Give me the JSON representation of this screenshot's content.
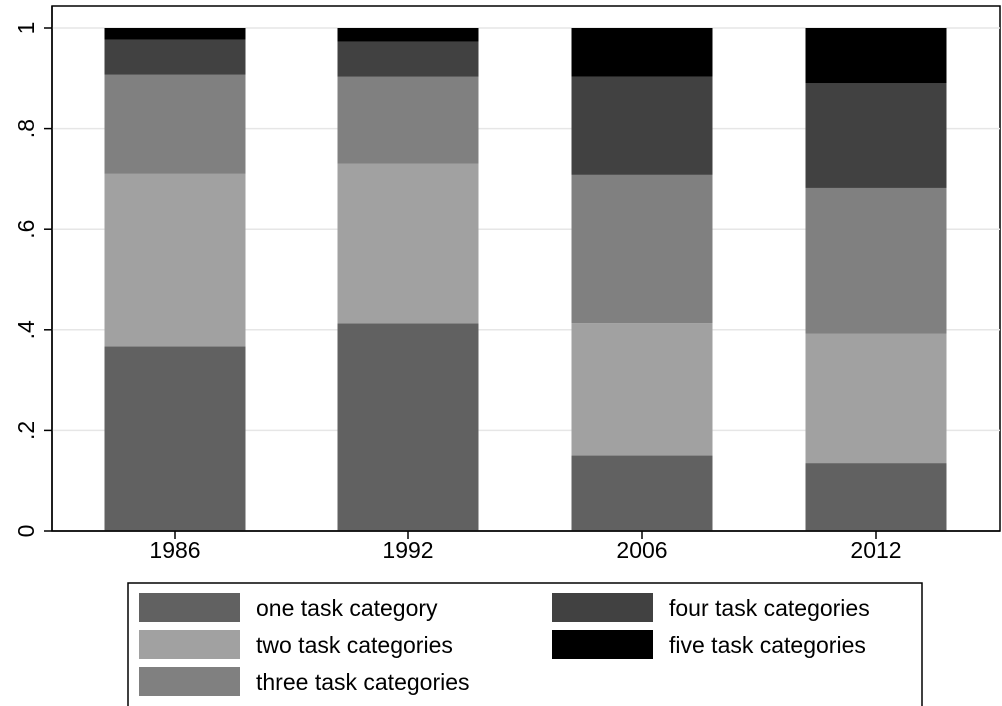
{
  "chart_data": {
    "type": "bar",
    "stacked": true,
    "title": "",
    "xlabel": "",
    "ylabel": "",
    "categories": [
      "1986",
      "1992",
      "2006",
      "2012"
    ],
    "ylim": [
      0,
      1
    ],
    "yticks": [
      {
        "value": 0,
        "label": "0"
      },
      {
        "value": 0.2,
        "label": ".2"
      },
      {
        "value": 0.4,
        "label": ".4"
      },
      {
        "value": 0.6,
        "label": ".6"
      },
      {
        "value": 0.8,
        "label": ".8"
      },
      {
        "value": 1,
        "label": "1"
      }
    ],
    "grid": true,
    "legend_position": "bottom",
    "series": [
      {
        "name": "one task category",
        "color": "#616161",
        "values": [
          0.367,
          0.413,
          0.15,
          0.135
        ]
      },
      {
        "name": "two task categories",
        "color": "#a1a1a1",
        "values": [
          0.343,
          0.317,
          0.263,
          0.257
        ]
      },
      {
        "name": "three task categories",
        "color": "#808080",
        "values": [
          0.197,
          0.173,
          0.295,
          0.29
        ]
      },
      {
        "name": "four task categories",
        "color": "#414141",
        "values": [
          0.07,
          0.07,
          0.195,
          0.208
        ]
      },
      {
        "name": "five task categories",
        "color": "#000000",
        "values": [
          0.023,
          0.027,
          0.097,
          0.11
        ]
      }
    ]
  }
}
